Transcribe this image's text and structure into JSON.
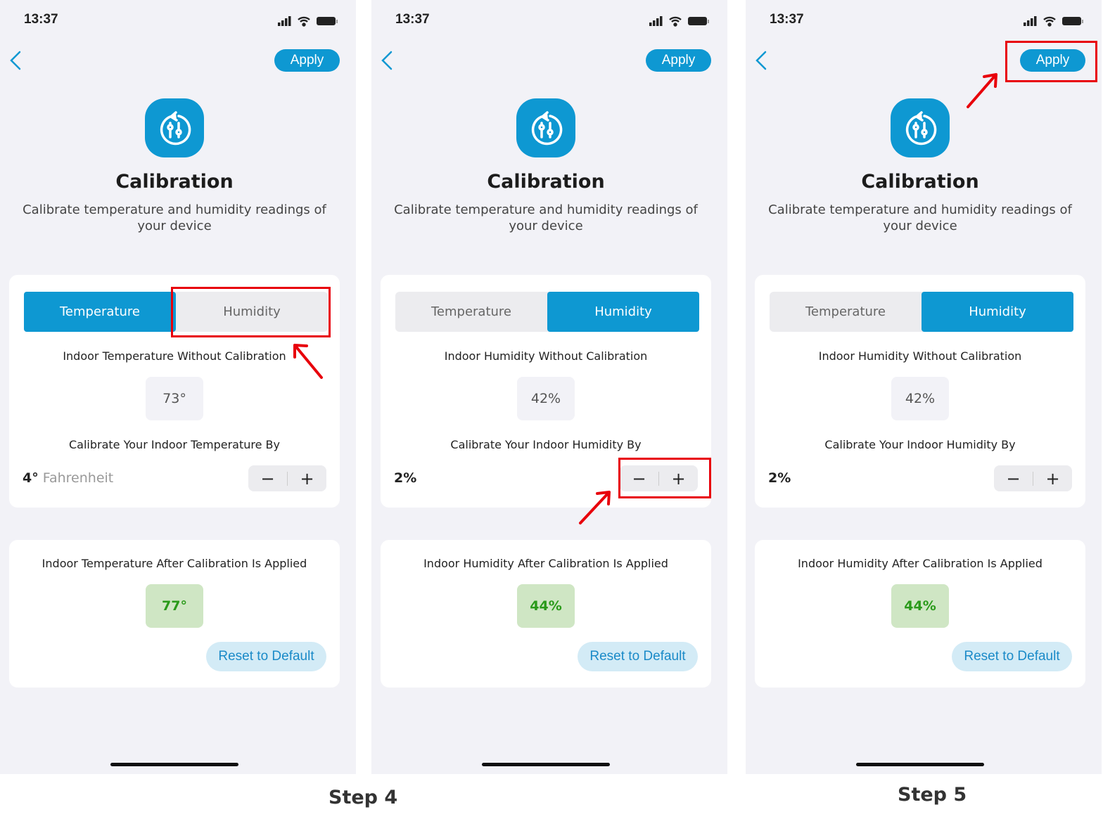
{
  "screens": [
    {
      "time": "13:37",
      "apply": "Apply",
      "title": "Calibration",
      "subtitle": "Calibrate temperature and humidity readings of your device",
      "tabs": [
        "Temperature",
        "Humidity"
      ],
      "active_tab": 0,
      "without_label": "Indoor Temperature Without Calibration",
      "without_value": "73°",
      "by_label": "Calibrate Your Indoor Temperature By",
      "offset_value": "4°",
      "offset_unit": "Fahrenheit",
      "after_label": "Indoor Temperature After Calibration Is Applied",
      "after_value": "77°",
      "reset": "Reset to Default"
    },
    {
      "time": "13:37",
      "apply": "Apply",
      "title": "Calibration",
      "subtitle": "Calibrate temperature and humidity readings of your device",
      "tabs": [
        "Temperature",
        "Humidity"
      ],
      "active_tab": 1,
      "without_label": "Indoor Humidity Without Calibration",
      "without_value": "42%",
      "by_label": "Calibrate Your Indoor Humidity By",
      "offset_value": "2%",
      "offset_unit": "",
      "after_label": "Indoor Humidity After Calibration Is Applied",
      "after_value": "44%",
      "reset": "Reset to Default"
    },
    {
      "time": "13:37",
      "apply": "Apply",
      "title": "Calibration",
      "subtitle": "Calibrate temperature and humidity readings of your device",
      "tabs": [
        "Temperature",
        "Humidity"
      ],
      "active_tab": 1,
      "without_label": "Indoor Humidity Without Calibration",
      "without_value": "42%",
      "by_label": "Calibrate Your Indoor Humidity By",
      "offset_value": "2%",
      "offset_unit": "",
      "after_label": "Indoor Humidity After Calibration Is Applied",
      "after_value": "44%",
      "reset": "Reset to Default"
    }
  ],
  "stepper": {
    "minus": "−",
    "plus": "+"
  },
  "captions": {
    "step4": "Step 4",
    "step5": "Step 5"
  },
  "colors": {
    "accent": "#0e98d2",
    "annotation": "#e8000b",
    "success_bg": "#cfe6c4",
    "success_text": "#2a9a1a"
  }
}
